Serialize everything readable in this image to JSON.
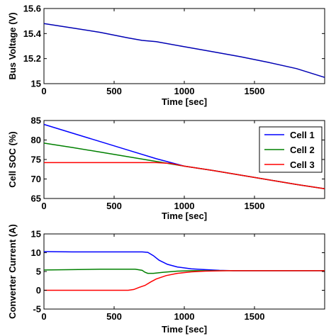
{
  "chart_data": [
    {
      "type": "line",
      "xlabel": "Time [sec]",
      "ylabel": "Bus Voltage (V)",
      "xlim": [
        0,
        2000
      ],
      "ylim": [
        15,
        15.6
      ],
      "xticks": [
        "0",
        "500",
        "1000",
        "1500"
      ],
      "yticks": [
        "15",
        "15.2",
        "15.4",
        "15.6"
      ],
      "grid": false,
      "series": [
        {
          "color": "#0000b4",
          "x": [
            0,
            200,
            400,
            600,
            700,
            800,
            1000,
            1200,
            1400,
            1600,
            1800,
            2000
          ],
          "y": [
            15.48,
            15.445,
            15.41,
            15.365,
            15.345,
            15.335,
            15.295,
            15.255,
            15.215,
            15.17,
            15.12,
            15.05
          ]
        }
      ]
    },
    {
      "type": "line",
      "xlabel": "Time [sec]",
      "ylabel": "Cell SOC (%)",
      "xlim": [
        0,
        2000
      ],
      "ylim": [
        65,
        85
      ],
      "xticks": [
        "0",
        "500",
        "1000",
        "1500"
      ],
      "yticks": [
        "65",
        "70",
        "75",
        "80",
        "85"
      ],
      "grid": false,
      "legend": "top-right",
      "series": [
        {
          "name": "Cell 1",
          "color": "#0000ff",
          "x": [
            0,
            200,
            400,
            600,
            800,
            1000,
            1200,
            1400,
            1600,
            1800,
            2000
          ],
          "y": [
            84,
            81.8,
            79.6,
            77.4,
            75.2,
            73.3,
            72.2,
            71,
            69.8,
            68.6,
            67.5
          ]
        },
        {
          "name": "Cell 2",
          "color": "#008000",
          "x": [
            0,
            200,
            400,
            600,
            800,
            1000,
            1200,
            1400,
            1600,
            1800,
            2000
          ],
          "y": [
            79.2,
            78.1,
            76.9,
            75.7,
            74.5,
            73.3,
            72.2,
            71,
            69.8,
            68.6,
            67.5
          ]
        },
        {
          "name": "Cell 3",
          "color": "#ff0000",
          "x": [
            0,
            200,
            400,
            600,
            800,
            900,
            1000,
            1200,
            1400,
            1600,
            1800,
            2000
          ],
          "y": [
            74.2,
            74.2,
            74.2,
            74.2,
            74.2,
            74.0,
            73.3,
            72.2,
            71,
            69.8,
            68.6,
            67.5
          ]
        }
      ]
    },
    {
      "type": "line",
      "xlabel": "Time [sec]",
      "ylabel": "Converter Current (A)",
      "xlim": [
        0,
        2000
      ],
      "ylim": [
        -5,
        15
      ],
      "xticks": [
        "0",
        "500",
        "1000",
        "1500"
      ],
      "yticks": [
        "-5",
        "0",
        "5",
        "10",
        "15"
      ],
      "grid": false,
      "series": [
        {
          "color": "#0000ff",
          "x": [
            0,
            200,
            400,
            600,
            700,
            740,
            780,
            820,
            880,
            950,
            1050,
            1150,
            1250,
            1350,
            1500,
            2000
          ],
          "y": [
            10.3,
            10.2,
            10.2,
            10.2,
            10.2,
            10.1,
            9.2,
            8.0,
            6.9,
            6.2,
            5.7,
            5.5,
            5.3,
            5.2,
            5.2,
            5.2
          ]
        },
        {
          "color": "#008000",
          "x": [
            0,
            200,
            400,
            600,
            650,
            700,
            720,
            740,
            780,
            850,
            950,
            1050,
            1200,
            1500,
            2000
          ],
          "y": [
            5.4,
            5.5,
            5.6,
            5.6,
            5.6,
            5.3,
            4.8,
            4.5,
            4.5,
            4.8,
            5.1,
            5.2,
            5.2,
            5.2,
            5.2
          ]
        },
        {
          "color": "#ff0000",
          "x": [
            0,
            200,
            400,
            600,
            640,
            680,
            720,
            760,
            800,
            870,
            950,
            1050,
            1150,
            1300,
            1500,
            2000
          ],
          "y": [
            0,
            0,
            0,
            0,
            0.2,
            0.8,
            1.3,
            2.2,
            3.0,
            3.9,
            4.5,
            4.9,
            5.1,
            5.2,
            5.2,
            5.2
          ]
        }
      ]
    }
  ]
}
